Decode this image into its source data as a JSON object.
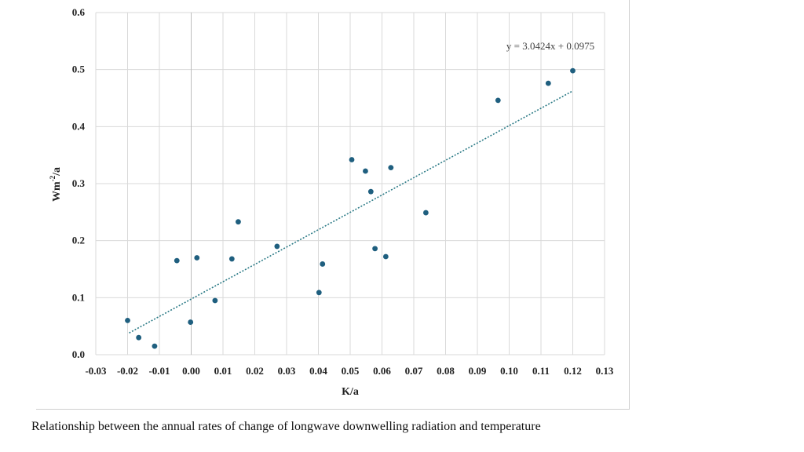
{
  "chart_data": {
    "type": "scatter",
    "title": "",
    "xlabel": "K/a",
    "ylabel_base": "Wm",
    "ylabel_sup": "-2",
    "ylabel_tail": "/a",
    "xlim": [
      -0.03,
      0.13
    ],
    "ylim": [
      0.0,
      0.6
    ],
    "x_tick_labels": [
      "-0.03",
      "-0.02",
      "-0.01",
      "0.00",
      "0.01",
      "0.02",
      "0.03",
      "0.04",
      "0.05",
      "0.06",
      "0.07",
      "0.08",
      "0.09",
      "0.10",
      "0.11",
      "0.12",
      "0.13"
    ],
    "x_tick_values": [
      -0.03,
      -0.02,
      -0.01,
      0.0,
      0.01,
      0.02,
      0.03,
      0.04,
      0.05,
      0.06,
      0.07,
      0.08,
      0.09,
      0.1,
      0.11,
      0.12,
      0.13
    ],
    "y_tick_labels": [
      "0.0",
      "0.1",
      "0.2",
      "0.3",
      "0.4",
      "0.5",
      "0.6"
    ],
    "y_tick_values": [
      0.0,
      0.1,
      0.2,
      0.3,
      0.4,
      0.5,
      0.6
    ],
    "grid": true,
    "points": [
      {
        "x": -0.02,
        "y": 0.06
      },
      {
        "x": -0.0165,
        "y": 0.03
      },
      {
        "x": -0.0115,
        "y": 0.015
      },
      {
        "x": -0.0045,
        "y": 0.165
      },
      {
        "x": -0.0002,
        "y": 0.057
      },
      {
        "x": 0.0018,
        "y": 0.17
      },
      {
        "x": 0.0075,
        "y": 0.095
      },
      {
        "x": 0.0128,
        "y": 0.168
      },
      {
        "x": 0.0148,
        "y": 0.233
      },
      {
        "x": 0.027,
        "y": 0.19
      },
      {
        "x": 0.0402,
        "y": 0.109
      },
      {
        "x": 0.0413,
        "y": 0.159
      },
      {
        "x": 0.0505,
        "y": 0.342
      },
      {
        "x": 0.0548,
        "y": 0.322
      },
      {
        "x": 0.0565,
        "y": 0.286
      },
      {
        "x": 0.0578,
        "y": 0.186
      },
      {
        "x": 0.0612,
        "y": 0.172
      },
      {
        "x": 0.0628,
        "y": 0.328
      },
      {
        "x": 0.0738,
        "y": 0.249
      },
      {
        "x": 0.0965,
        "y": 0.446
      },
      {
        "x": 0.1123,
        "y": 0.476
      },
      {
        "x": 0.12,
        "y": 0.498
      }
    ],
    "trendline": {
      "slope": 3.0424,
      "intercept": 0.0975,
      "x_start": -0.0195,
      "x_end": 0.12
    },
    "equation_text": "y = 3.0424x + 0.0975",
    "point_color": "#1f5f7f",
    "trend_color": "#2b7a86",
    "grid_color": "#d9d9d9"
  },
  "caption": "Relationship between the annual rates of change of longwave downwelling radiation and temperature"
}
